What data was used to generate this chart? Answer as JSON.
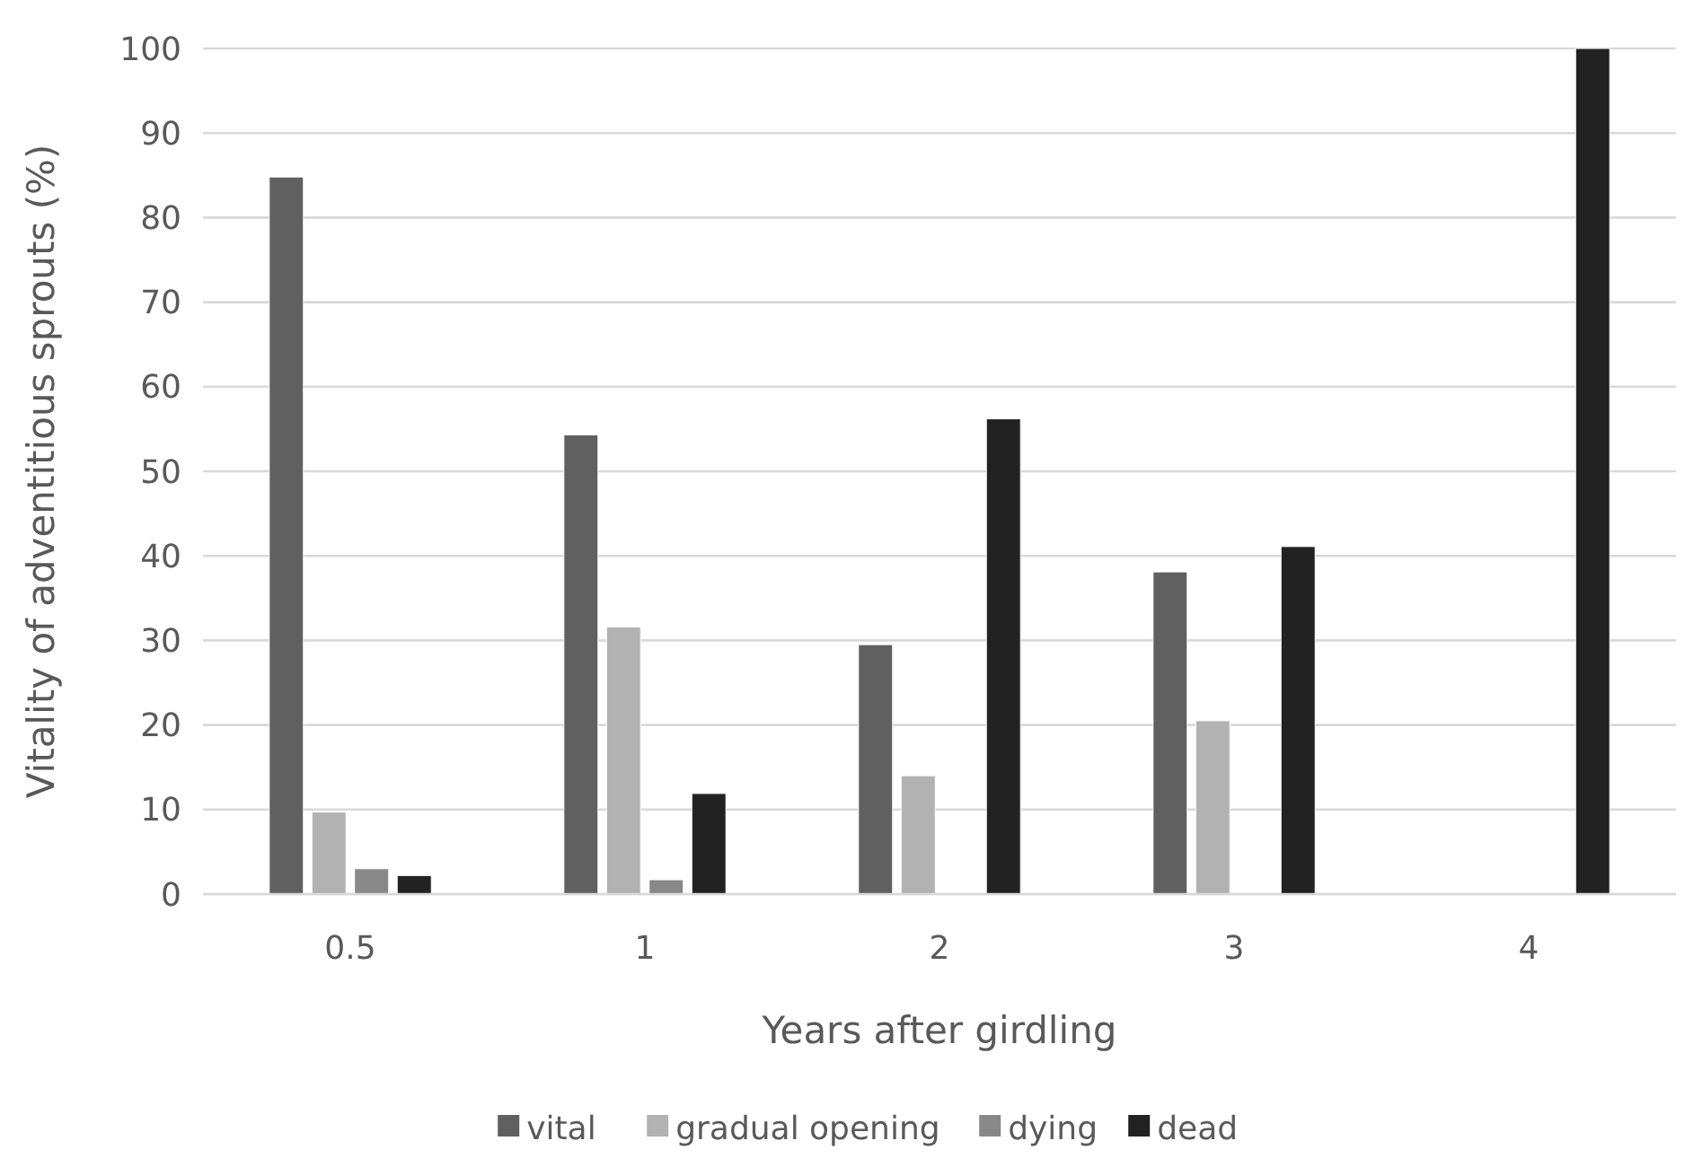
{
  "chart_data": {
    "type": "bar",
    "xlabel": "Years after girdling",
    "ylabel": "Vitality of adventitious sprouts (%)",
    "categories": [
      "0.5",
      "1",
      "2",
      "3",
      "4"
    ],
    "series": [
      {
        "name": "vital",
        "color": "#606060",
        "values": [
          84.8,
          54.3,
          29.5,
          38.1,
          0
        ]
      },
      {
        "name": "gradual opening",
        "color": "#b2b2b2",
        "values": [
          9.7,
          31.6,
          14.0,
          20.5,
          0
        ]
      },
      {
        "name": "dying",
        "color": "#888888",
        "values": [
          3.0,
          1.7,
          0,
          0,
          0
        ]
      },
      {
        "name": "dead",
        "color": "#222222",
        "values": [
          2.2,
          11.9,
          56.2,
          41.1,
          100
        ]
      }
    ],
    "ylim": [
      0,
      100
    ],
    "yticks": [
      0,
      10,
      20,
      30,
      40,
      50,
      60,
      70,
      80,
      90,
      100
    ],
    "grid": "y",
    "legend": "bottom"
  }
}
